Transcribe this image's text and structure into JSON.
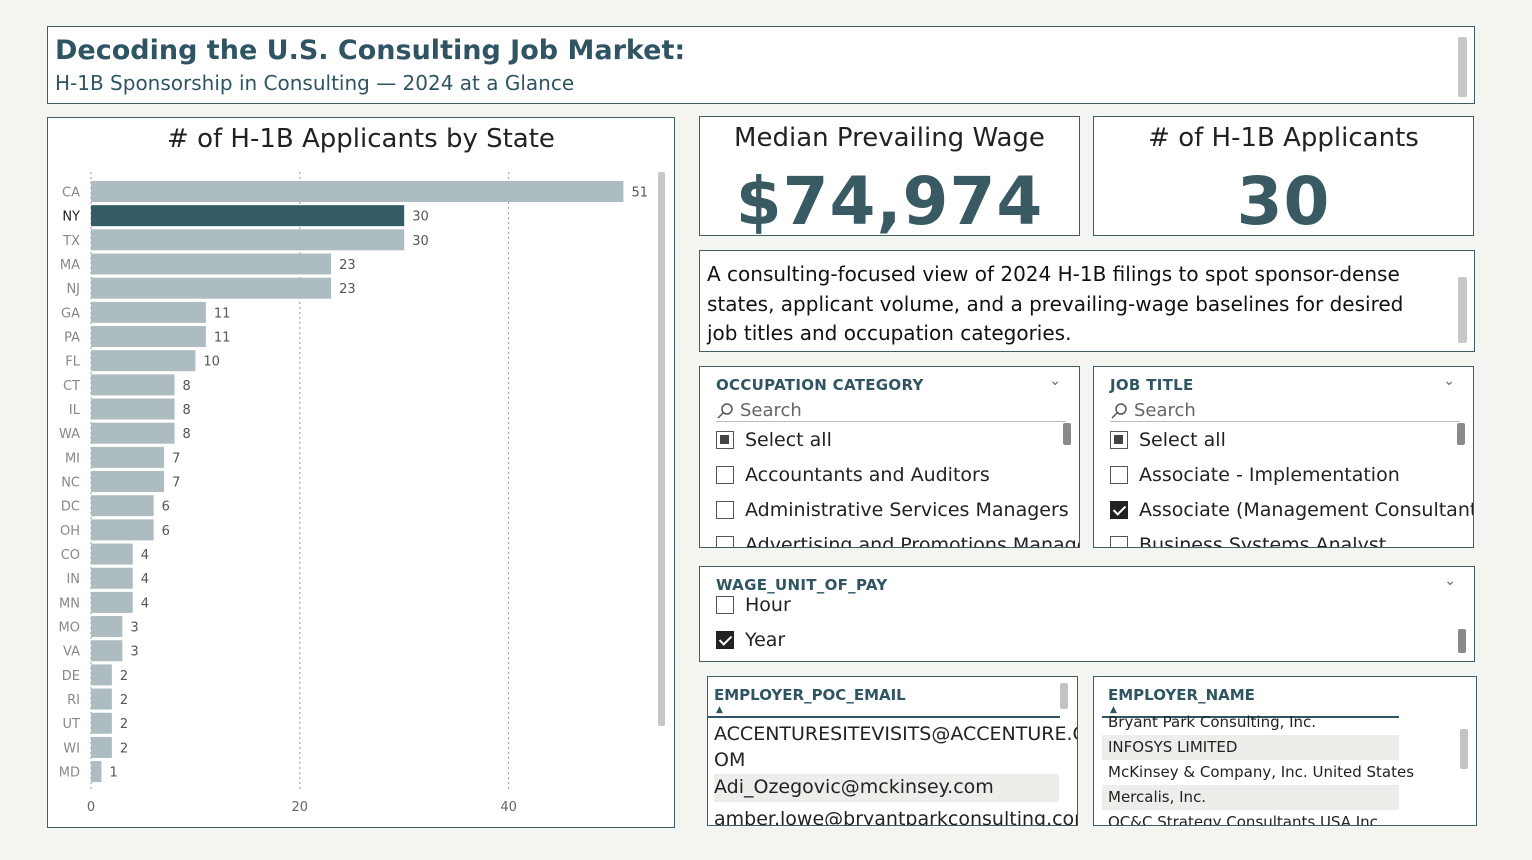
{
  "header": {
    "title": "Decoding the U.S. Consulting Job Market:",
    "subtitle": "H-1B Sponsorship in Consulting — 2024 at a Glance"
  },
  "kpis": {
    "median_wage_label": "Median Prevailing Wage",
    "median_wage_value": "$74,974",
    "applicants_label": "# of H-1B Applicants",
    "applicants_value": "30"
  },
  "description": "A consulting-focused view of 2024 H-1B filings to spot sponsor-dense states, applicant volume, and a prevailing-wage baselines for desired job titles and occupation categories.",
  "slicers": {
    "occupation": {
      "header": "OCCUPATION CATEGORY",
      "search_placeholder": "Search",
      "items": [
        {
          "label": "Select all",
          "state": "partial"
        },
        {
          "label": "Accountants and Auditors",
          "state": "unchecked"
        },
        {
          "label": "Administrative Services Managers",
          "state": "unchecked"
        },
        {
          "label": "Advertising and Promotions Managers",
          "state": "unchecked"
        }
      ]
    },
    "job_title": {
      "header": "JOB TITLE",
      "search_placeholder": "Search",
      "items": [
        {
          "label": "Select all",
          "state": "partial"
        },
        {
          "label": "Associate - Implementation",
          "state": "unchecked"
        },
        {
          "label": "Associate (Management Consultant)",
          "state": "checked"
        },
        {
          "label": "Business Systems Analyst",
          "state": "unchecked"
        }
      ]
    },
    "wage_unit": {
      "header": "WAGE_UNIT_OF_PAY",
      "items": [
        {
          "label": "Hour",
          "state": "unchecked"
        },
        {
          "label": "Year",
          "state": "checked"
        }
      ]
    }
  },
  "tables": {
    "email": {
      "header": "EMPLOYER_POC_EMAIL",
      "rows": [
        "ACCENTURESITEVISITS@ACCENTURE.C OM",
        "Adi_Ozegovic@mckinsey.com",
        "amber.lowe@bryantparkconsulting.com"
      ]
    },
    "employer": {
      "header": "EMPLOYER_NAME",
      "rows": [
        "Bryant Park Consulting, Inc.",
        "INFOSYS LIMITED",
        "McKinsey & Company, Inc. United States",
        "Mercalis, Inc.",
        "OC&C Strategy Consultants USA Inc."
      ]
    }
  },
  "colors": {
    "bar_default": "#adbcc0",
    "bar_selected": "#335c67",
    "accent": "#2f5462"
  },
  "chart_data": {
    "type": "bar",
    "orientation": "horizontal",
    "title": "# of H-1B Applicants by State",
    "categories": [
      "CA",
      "NY",
      "TX",
      "MA",
      "NJ",
      "GA",
      "PA",
      "FL",
      "CT",
      "IL",
      "WA",
      "MI",
      "NC",
      "DC",
      "OH",
      "CO",
      "IN",
      "MN",
      "MO",
      "VA",
      "DE",
      "RI",
      "UT",
      "WI",
      "MD"
    ],
    "values": [
      51,
      30,
      30,
      23,
      23,
      11,
      11,
      10,
      8,
      8,
      8,
      7,
      7,
      6,
      6,
      4,
      4,
      4,
      3,
      3,
      2,
      2,
      2,
      2,
      1
    ],
    "selected": "NY",
    "xticks": [
      0,
      20,
      40
    ],
    "xlim": [
      0,
      55
    ],
    "grid": true
  }
}
